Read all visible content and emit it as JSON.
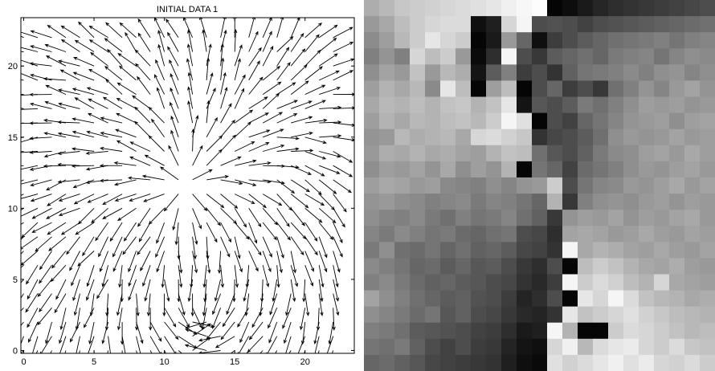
{
  "chart_data": [
    {
      "type": "quiver",
      "title": "INITIAL DATA 1",
      "xlabel": "",
      "ylabel": "",
      "xlim": [
        -0.2,
        23.5
      ],
      "ylim": [
        -0.2,
        23.4
      ],
      "x_ticks": [
        0,
        5,
        10,
        15,
        20
      ],
      "y_ticks": [
        0,
        5,
        10,
        15,
        20
      ],
      "x_tick_labels": [
        "0",
        "5",
        "10",
        "15",
        "20"
      ],
      "y_tick_labels": [
        "0",
        "5",
        "10",
        "15",
        "20"
      ],
      "grid": false,
      "field": {
        "description_cells": [
          23,
          23
        ],
        "x_range": [
          0,
          22
        ],
        "y_range": [
          0,
          22
        ],
        "sources": [
          {
            "x": 11.5,
            "y": 11.6,
            "kind": "source",
            "strength": 1.0
          },
          {
            "x": 12.5,
            "y": 2.0,
            "kind": "sink",
            "strength": 0.45
          }
        ],
        "arrow_length": 1.55
      }
    },
    {
      "type": "heatmap",
      "colormap": "gray",
      "rows": 23,
      "cols": 23,
      "value_range": [
        0,
        1
      ],
      "row_order": "top-to-bottom",
      "values": [
        [
          0.68,
          0.72,
          0.78,
          0.8,
          0.82,
          0.84,
          0.86,
          0.88,
          0.9,
          0.94,
          0.97,
          0.99,
          0.02,
          0.05,
          0.1,
          0.15,
          0.18,
          0.2,
          0.22,
          0.24,
          0.26,
          0.28,
          0.3
        ],
        [
          0.6,
          0.66,
          0.74,
          0.8,
          0.84,
          0.86,
          0.86,
          0.06,
          0.12,
          0.84,
          0.96,
          0.3,
          0.32,
          0.3,
          0.26,
          0.3,
          0.32,
          0.34,
          0.36,
          0.38,
          0.4,
          0.42,
          0.44
        ],
        [
          0.55,
          0.62,
          0.72,
          0.8,
          0.9,
          0.84,
          0.8,
          0.02,
          0.1,
          0.6,
          0.4,
          0.06,
          0.24,
          0.3,
          0.36,
          0.4,
          0.44,
          0.46,
          0.48,
          0.5,
          0.46,
          0.5,
          0.52
        ],
        [
          0.5,
          0.58,
          0.5,
          0.84,
          0.74,
          0.8,
          0.6,
          0.04,
          0.18,
          0.96,
          0.3,
          0.22,
          0.36,
          0.4,
          0.44,
          0.4,
          0.48,
          0.5,
          0.52,
          0.46,
          0.52,
          0.56,
          0.54
        ],
        [
          0.56,
          0.64,
          0.6,
          0.76,
          0.6,
          0.72,
          0.68,
          0.08,
          0.36,
          0.5,
          0.24,
          0.3,
          0.2,
          0.38,
          0.46,
          0.48,
          0.5,
          0.54,
          0.5,
          0.56,
          0.58,
          0.52,
          0.56
        ],
        [
          0.62,
          0.7,
          0.66,
          0.72,
          0.54,
          0.9,
          0.74,
          0.02,
          0.62,
          0.74,
          0.02,
          0.3,
          0.4,
          0.24,
          0.3,
          0.22,
          0.44,
          0.5,
          0.58,
          0.52,
          0.6,
          0.64,
          0.58
        ],
        [
          0.66,
          0.72,
          0.7,
          0.74,
          0.7,
          0.76,
          0.78,
          0.7,
          0.76,
          0.9,
          0.08,
          0.34,
          0.3,
          0.36,
          0.48,
          0.44,
          0.5,
          0.56,
          0.62,
          0.6,
          0.62,
          0.58,
          0.6
        ],
        [
          0.62,
          0.7,
          0.66,
          0.72,
          0.7,
          0.74,
          0.76,
          0.72,
          0.8,
          0.96,
          0.88,
          0.02,
          0.3,
          0.26,
          0.4,
          0.46,
          0.52,
          0.58,
          0.6,
          0.62,
          0.56,
          0.62,
          0.64
        ],
        [
          0.58,
          0.6,
          0.72,
          0.68,
          0.7,
          0.72,
          0.66,
          0.84,
          0.86,
          0.82,
          0.78,
          0.2,
          0.28,
          0.3,
          0.36,
          0.44,
          0.56,
          0.6,
          0.58,
          0.6,
          0.64,
          0.6,
          0.62
        ],
        [
          0.6,
          0.68,
          0.66,
          0.7,
          0.66,
          0.68,
          0.64,
          0.62,
          0.7,
          0.76,
          0.74,
          0.44,
          0.34,
          0.3,
          0.38,
          0.48,
          0.54,
          0.56,
          0.62,
          0.64,
          0.6,
          0.66,
          0.62
        ],
        [
          0.56,
          0.62,
          0.6,
          0.64,
          0.58,
          0.66,
          0.56,
          0.62,
          0.58,
          0.7,
          0.02,
          0.46,
          0.4,
          0.26,
          0.42,
          0.46,
          0.5,
          0.56,
          0.6,
          0.58,
          0.62,
          0.64,
          0.6
        ],
        [
          0.62,
          0.66,
          0.64,
          0.6,
          0.62,
          0.54,
          0.52,
          0.5,
          0.56,
          0.52,
          0.58,
          0.6,
          0.8,
          0.3,
          0.46,
          0.52,
          0.54,
          0.6,
          0.58,
          0.62,
          0.66,
          0.6,
          0.64
        ],
        [
          0.58,
          0.6,
          0.56,
          0.54,
          0.5,
          0.52,
          0.54,
          0.48,
          0.52,
          0.5,
          0.46,
          0.4,
          0.7,
          0.22,
          0.5,
          0.56,
          0.58,
          0.56,
          0.6,
          0.62,
          0.58,
          0.62,
          0.6
        ],
        [
          0.56,
          0.52,
          0.5,
          0.54,
          0.48,
          0.44,
          0.5,
          0.46,
          0.48,
          0.52,
          0.44,
          0.38,
          0.22,
          0.58,
          0.62,
          0.6,
          0.64,
          0.58,
          0.62,
          0.6,
          0.64,
          0.66,
          0.6
        ],
        [
          0.52,
          0.48,
          0.54,
          0.5,
          0.46,
          0.48,
          0.42,
          0.4,
          0.44,
          0.46,
          0.3,
          0.28,
          0.18,
          0.64,
          0.66,
          0.64,
          0.6,
          0.62,
          0.66,
          0.62,
          0.6,
          0.64,
          0.62
        ],
        [
          0.48,
          0.56,
          0.44,
          0.42,
          0.46,
          0.4,
          0.44,
          0.38,
          0.4,
          0.36,
          0.28,
          0.26,
          0.2,
          0.96,
          0.66,
          0.7,
          0.68,
          0.64,
          0.62,
          0.66,
          0.62,
          0.6,
          0.64
        ],
        [
          0.54,
          0.5,
          0.46,
          0.4,
          0.42,
          0.36,
          0.4,
          0.34,
          0.36,
          0.3,
          0.22,
          0.18,
          0.3,
          0.02,
          0.74,
          0.8,
          0.76,
          0.7,
          0.66,
          0.64,
          0.68,
          0.62,
          0.6
        ],
        [
          0.5,
          0.54,
          0.48,
          0.42,
          0.38,
          0.4,
          0.36,
          0.34,
          0.3,
          0.28,
          0.2,
          0.16,
          0.24,
          0.96,
          0.8,
          0.86,
          0.82,
          0.74,
          0.7,
          0.84,
          0.66,
          0.64,
          0.62
        ],
        [
          0.64,
          0.56,
          0.5,
          0.44,
          0.4,
          0.36,
          0.38,
          0.32,
          0.3,
          0.24,
          0.14,
          0.18,
          0.3,
          0.02,
          0.9,
          0.84,
          0.96,
          0.86,
          0.76,
          0.72,
          0.7,
          0.66,
          0.68
        ],
        [
          0.56,
          0.52,
          0.48,
          0.42,
          0.46,
          0.34,
          0.38,
          0.3,
          0.28,
          0.22,
          0.16,
          0.14,
          0.2,
          0.9,
          0.76,
          0.8,
          0.84,
          0.88,
          0.82,
          0.78,
          0.74,
          0.72,
          0.7
        ],
        [
          0.5,
          0.48,
          0.44,
          0.36,
          0.34,
          0.32,
          0.3,
          0.26,
          0.24,
          0.18,
          0.1,
          0.12,
          0.96,
          0.7,
          0.02,
          0.02,
          0.8,
          0.86,
          0.84,
          0.8,
          0.76,
          0.72,
          0.74
        ],
        [
          0.46,
          0.44,
          0.48,
          0.38,
          0.3,
          0.26,
          0.3,
          0.24,
          0.22,
          0.14,
          0.08,
          0.06,
          0.84,
          0.94,
          0.72,
          0.86,
          0.9,
          0.92,
          0.84,
          0.8,
          0.86,
          0.78,
          0.76
        ],
        [
          0.4,
          0.42,
          0.38,
          0.34,
          0.28,
          0.26,
          0.24,
          0.22,
          0.2,
          0.12,
          0.06,
          0.04,
          0.88,
          0.82,
          0.86,
          0.9,
          0.94,
          0.88,
          0.92,
          0.84,
          0.82,
          0.86,
          0.8
        ]
      ]
    }
  ]
}
